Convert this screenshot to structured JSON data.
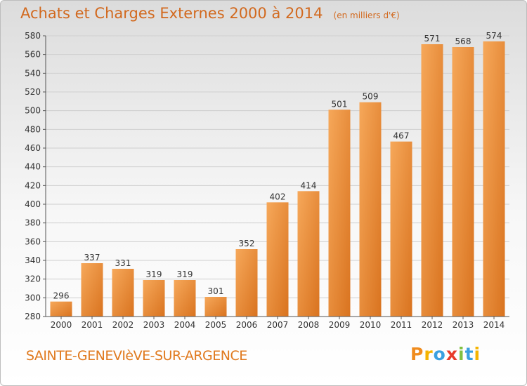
{
  "chart_data": {
    "type": "bar",
    "title": "Achats et Charges Externes 2000 à 2014",
    "subtitle": "(en milliers d'€)",
    "categories": [
      "2000",
      "2001",
      "2002",
      "2003",
      "2004",
      "2005",
      "2006",
      "2007",
      "2008",
      "2009",
      "2010",
      "2011",
      "2012",
      "2013",
      "2014"
    ],
    "values": [
      296,
      337,
      331,
      319,
      319,
      301,
      352,
      402,
      414,
      501,
      509,
      467,
      571,
      568,
      574
    ],
    "ylim": [
      280,
      580
    ],
    "yticks": [
      280,
      300,
      320,
      340,
      360,
      380,
      400,
      420,
      440,
      460,
      480,
      500,
      520,
      540,
      560,
      580
    ],
    "grid": true,
    "bar_color": "#f0a04a",
    "xlabel": "",
    "ylabel": ""
  },
  "footer": {
    "commune": "SAINTE-GENEVIèVE-SUR-ARGENCE",
    "logo_letters": [
      "P",
      "r",
      "o",
      "x",
      "i",
      "t",
      "i"
    ],
    "logo_colors": [
      "#f08c1e",
      "#f5b400",
      "#3aa0e0",
      "#e83a2a",
      "#80c040",
      "#3aa0e0",
      "#f5b400"
    ]
  },
  "colors": {
    "title": "#d2691e",
    "grid": "#cfcfcf",
    "axis": "#555555"
  }
}
